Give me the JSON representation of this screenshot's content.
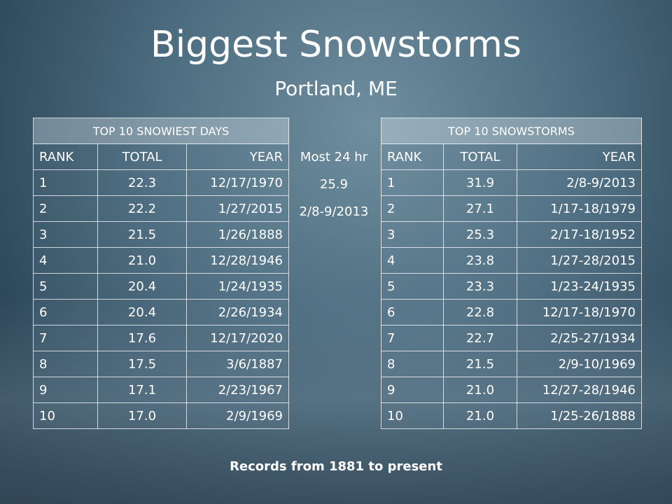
{
  "title": "Biggest Snowstorms",
  "subtitle": "Portland, ME",
  "tables": [
    {
      "title": "TOP 10 SNOWIEST DAYS",
      "headers": [
        "RANK",
        "TOTAL",
        "YEAR"
      ],
      "rows": [
        [
          "1",
          "22.3",
          "12/17/1970"
        ],
        [
          "2",
          "22.2",
          "1/27/2015"
        ],
        [
          "3",
          "21.5",
          "1/26/1888"
        ],
        [
          "4",
          "21.0",
          "12/28/1946"
        ],
        [
          "5",
          "20.4",
          "1/24/1935"
        ],
        [
          "6",
          "20.4",
          "2/26/1934"
        ],
        [
          "7",
          "17.6",
          "12/17/2020"
        ],
        [
          "8",
          "17.5",
          "3/6/1887"
        ],
        [
          "9",
          "17.1",
          "2/23/1967"
        ],
        [
          "10",
          "17.0",
          "2/9/1969"
        ]
      ]
    },
    {
      "title": "TOP 10 SNOWSTORMS",
      "headers": [
        "RANK",
        "TOTAL",
        "YEAR"
      ],
      "rows": [
        [
          "1",
          "31.9",
          "2/8-9/2013"
        ],
        [
          "2",
          "27.1",
          "1/17-18/1979"
        ],
        [
          "3",
          "25.3",
          "2/17-18/1952"
        ],
        [
          "4",
          "23.8",
          "1/27-28/2015"
        ],
        [
          "5",
          "23.3",
          "1/23-24/1935"
        ],
        [
          "6",
          "22.8",
          "12/17-18/1970"
        ],
        [
          "7",
          "22.7",
          "2/25-27/1934"
        ],
        [
          "8",
          "21.5",
          "2/9-10/1969"
        ],
        [
          "9",
          "21.0",
          "12/27-28/1946"
        ],
        [
          "10",
          "21.0",
          "1/25-26/1888"
        ]
      ]
    }
  ],
  "most_24hr": {
    "label": "Most 24 hr",
    "value": "25.9",
    "date": "2/8-9/2013"
  },
  "footer": "Records from 1881 to present"
}
